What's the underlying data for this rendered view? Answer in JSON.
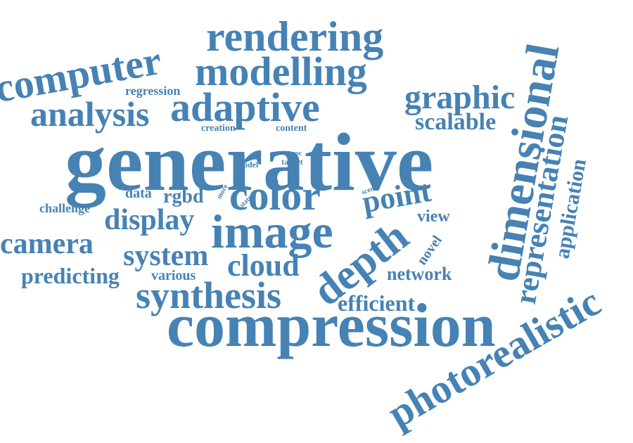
{
  "color": "#4682b4",
  "words": {
    "generative": "generative",
    "compression": "compression",
    "image": "image",
    "color": "color",
    "dimensional": "dimensional",
    "photorealistic": "photorealistic",
    "depth": "depth",
    "synthesis": "synthesis",
    "rendering": "rendering",
    "modelling": "modelling",
    "computer": "computer",
    "adaptive": "adaptive",
    "analysis": "analysis",
    "graphic": "graphic",
    "representation": "representation",
    "camera": "camera",
    "display": "display",
    "system": "system",
    "cloud": "cloud",
    "point": "point",
    "scalable": "scalable",
    "application": "application",
    "efficient": "efficient",
    "predicting": "predicting",
    "network": "network",
    "rgbd": "rgbd",
    "regression": "regression",
    "challenge": "challenge",
    "data": "data",
    "view": "view",
    "various": "various",
    "creation": "creation",
    "content": "content",
    "novel": "novel",
    "model": "model",
    "target": "target",
    "proc": "proc",
    "text": "text",
    "scene": "scene",
    "more": "more",
    "state": "state"
  }
}
